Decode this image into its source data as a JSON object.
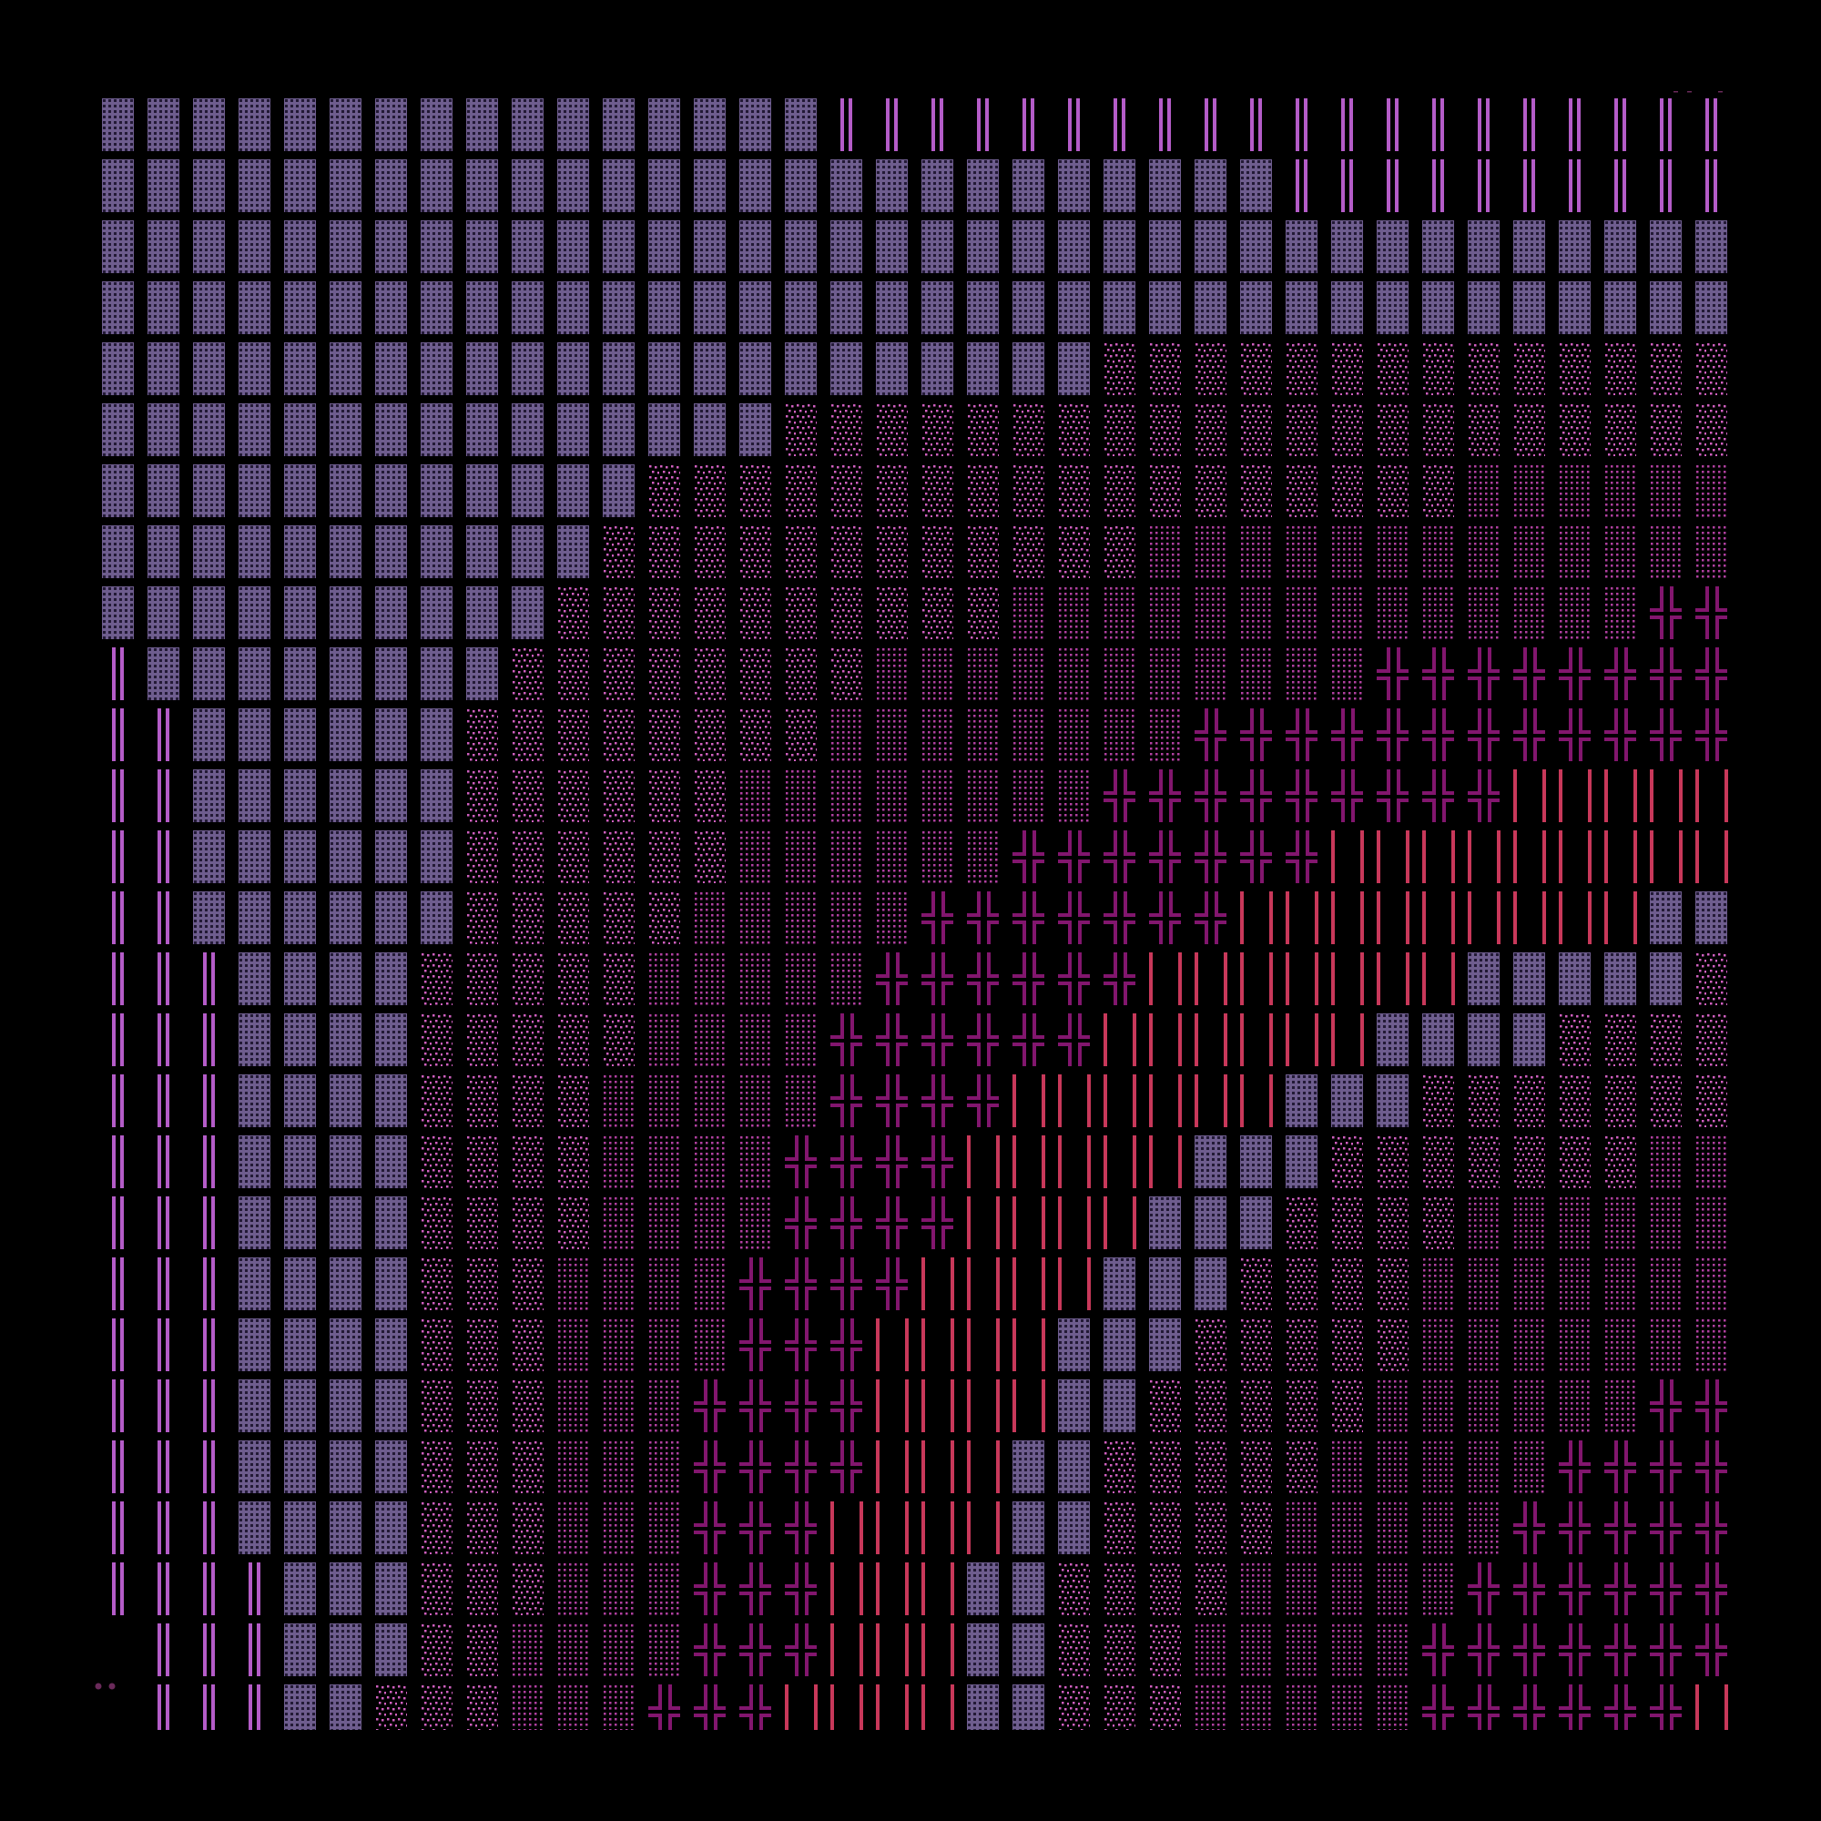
{
  "colors": {
    "background": "#000000",
    "A": "#6e5d8e",
    "A_dot": "#231a36",
    "V": "#b45cc8",
    "S": "#d060c0",
    "D": "#b040a0",
    "X": "#82166e",
    "R": "#c8385a",
    "stray": "#6a2a5a"
  },
  "tile_types": {
    "A": "dotted-block",
    "V": "double-violet-line",
    "S": "sparse-dots",
    "D": "dense-dots",
    "X": "cross",
    "R": "red-lines",
    "_": "empty"
  },
  "grid": [
    [
      [
        "A",
        16
      ],
      [
        "V",
        20
      ],
      [
        "_",
        1
      ]
    ],
    [
      [
        "A",
        26
      ],
      [
        "V",
        10
      ],
      [
        "_",
        1
      ]
    ],
    [
      [
        "A",
        37
      ]
    ],
    [
      [
        "A",
        37
      ]
    ],
    [
      [
        "A",
        22
      ],
      [
        "S",
        15
      ]
    ],
    [
      [
        "A",
        15
      ],
      [
        "S",
        22
      ]
    ],
    [
      [
        "A",
        12
      ],
      [
        "S",
        18
      ],
      [
        "D",
        7
      ]
    ],
    [
      [
        "A",
        11
      ],
      [
        "S",
        12
      ],
      [
        "D",
        14
      ]
    ],
    [
      [
        "A",
        10
      ],
      [
        "S",
        10
      ],
      [
        "D",
        14
      ],
      [
        "X",
        3
      ]
    ],
    [
      [
        "V",
        1
      ],
      [
        "A",
        8
      ],
      [
        "S",
        8
      ],
      [
        "D",
        11
      ],
      [
        "X",
        9
      ]
    ],
    [
      [
        "V",
        2
      ],
      [
        "A",
        6
      ],
      [
        "S",
        8
      ],
      [
        "D",
        8
      ],
      [
        "X",
        13
      ]
    ],
    [
      [
        "V",
        2
      ],
      [
        "A",
        6
      ],
      [
        "S",
        6
      ],
      [
        "D",
        8
      ],
      [
        "X",
        9
      ],
      [
        "R",
        6
      ]
    ],
    [
      [
        "V",
        2
      ],
      [
        "A",
        6
      ],
      [
        "S",
        6
      ],
      [
        "D",
        6
      ],
      [
        "X",
        7
      ],
      [
        "R",
        10
      ]
    ],
    [
      [
        "V",
        2
      ],
      [
        "A",
        6
      ],
      [
        "S",
        5
      ],
      [
        "D",
        5
      ],
      [
        "X",
        7
      ],
      [
        "R",
        9
      ],
      [
        "A",
        3
      ]
    ],
    [
      [
        "V",
        3
      ],
      [
        "A",
        4
      ],
      [
        "S",
        5
      ],
      [
        "D",
        5
      ],
      [
        "X",
        6
      ],
      [
        "R",
        7
      ],
      [
        "A",
        5
      ],
      [
        "S",
        2
      ]
    ],
    [
      [
        "V",
        3
      ],
      [
        "A",
        4
      ],
      [
        "S",
        5
      ],
      [
        "D",
        4
      ],
      [
        "X",
        6
      ],
      [
        "R",
        6
      ],
      [
        "A",
        4
      ],
      [
        "S",
        5
      ]
    ],
    [
      [
        "V",
        3
      ],
      [
        "A",
        4
      ],
      [
        "S",
        4
      ],
      [
        "D",
        5
      ],
      [
        "X",
        4
      ],
      [
        "R",
        6
      ],
      [
        "A",
        3
      ],
      [
        "S",
        8
      ]
    ],
    [
      [
        "V",
        3
      ],
      [
        "A",
        4
      ],
      [
        "S",
        4
      ],
      [
        "D",
        4
      ],
      [
        "X",
        4
      ],
      [
        "R",
        5
      ],
      [
        "A",
        3
      ],
      [
        "S",
        7
      ],
      [
        "D",
        3
      ]
    ],
    [
      [
        "V",
        3
      ],
      [
        "A",
        4
      ],
      [
        "S",
        4
      ],
      [
        "D",
        4
      ],
      [
        "X",
        4
      ],
      [
        "R",
        4
      ],
      [
        "A",
        3
      ],
      [
        "S",
        4
      ],
      [
        "D",
        7
      ]
    ],
    [
      [
        "V",
        3
      ],
      [
        "A",
        4
      ],
      [
        "S",
        3
      ],
      [
        "D",
        4
      ],
      [
        "X",
        4
      ],
      [
        "R",
        4
      ],
      [
        "A",
        3
      ],
      [
        "S",
        4
      ],
      [
        "D",
        8
      ]
    ],
    [
      [
        "V",
        3
      ],
      [
        "A",
        4
      ],
      [
        "S",
        3
      ],
      [
        "D",
        4
      ],
      [
        "X",
        3
      ],
      [
        "R",
        4
      ],
      [
        "A",
        3
      ],
      [
        "S",
        5
      ],
      [
        "D",
        8
      ]
    ],
    [
      [
        "V",
        3
      ],
      [
        "A",
        4
      ],
      [
        "S",
        3
      ],
      [
        "D",
        3
      ],
      [
        "X",
        4
      ],
      [
        "R",
        4
      ],
      [
        "A",
        2
      ],
      [
        "S",
        5
      ],
      [
        "D",
        6
      ],
      [
        "X",
        3
      ]
    ],
    [
      [
        "V",
        3
      ],
      [
        "A",
        4
      ],
      [
        "S",
        3
      ],
      [
        "D",
        3
      ],
      [
        "X",
        4
      ],
      [
        "R",
        3
      ],
      [
        "A",
        2
      ],
      [
        "S",
        5
      ],
      [
        "D",
        5
      ],
      [
        "X",
        5
      ]
    ],
    [
      [
        "V",
        3
      ],
      [
        "A",
        4
      ],
      [
        "S",
        3
      ],
      [
        "D",
        3
      ],
      [
        "X",
        3
      ],
      [
        "R",
        4
      ],
      [
        "A",
        2
      ],
      [
        "S",
        4
      ],
      [
        "D",
        5
      ],
      [
        "X",
        6
      ]
    ],
    [
      [
        "V",
        4
      ],
      [
        "A",
        3
      ],
      [
        "S",
        3
      ],
      [
        "D",
        3
      ],
      [
        "X",
        3
      ],
      [
        "R",
        3
      ],
      [
        "A",
        2
      ],
      [
        "S",
        4
      ],
      [
        "D",
        5
      ],
      [
        "X",
        7
      ]
    ],
    [
      [
        "_",
        1
      ],
      [
        "V",
        3
      ],
      [
        "A",
        3
      ],
      [
        "S",
        2
      ],
      [
        "D",
        4
      ],
      [
        "X",
        3
      ],
      [
        "R",
        3
      ],
      [
        "A",
        2
      ],
      [
        "S",
        3
      ],
      [
        "D",
        5
      ],
      [
        "X",
        7
      ],
      [
        "R",
        1
      ]
    ],
    [
      [
        "_",
        1
      ],
      [
        "V",
        3
      ],
      [
        "A",
        2
      ],
      [
        "S",
        3
      ],
      [
        "D",
        3
      ],
      [
        "X",
        3
      ],
      [
        "R",
        4
      ],
      [
        "A",
        2
      ],
      [
        "S",
        3
      ],
      [
        "D",
        5
      ],
      [
        "X",
        6
      ],
      [
        "R",
        2
      ]
    ]
  ]
}
